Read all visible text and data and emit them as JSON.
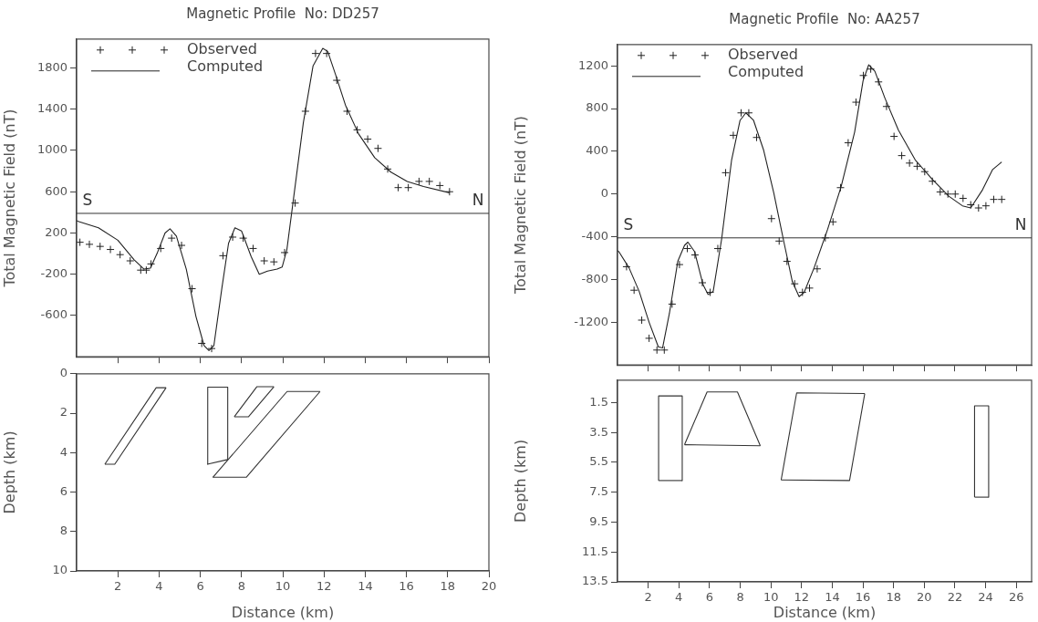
{
  "chart_data": [
    {
      "type": "line",
      "title": "Magnetic Profile  No: DD257",
      "ylabel": "Total Magnetic Field (nT)",
      "xlim": [
        0,
        20
      ],
      "ylim": [
        -1000,
        2080
      ],
      "xticks": [
        2,
        4,
        6,
        8,
        10,
        12,
        14,
        16,
        18,
        20
      ],
      "yticks": [
        -600,
        -200,
        200,
        600,
        1000,
        1400,
        1800
      ],
      "tick_labels": "y",
      "legend": "top left",
      "ref_lines": [
        {
          "axis": "y",
          "value": 390,
          "color": "#333333"
        }
      ],
      "annotations": [
        "S",
        "N"
      ],
      "series": [
        {
          "name": "Observed",
          "type": "scatter",
          "marker": "cross",
          "color": "#222222",
          "x": [
            0.16,
            0.62,
            1.14,
            1.64,
            2.11,
            2.6,
            3.11,
            3.38,
            3.61,
            4.08,
            4.61,
            5.09,
            5.6,
            6.07,
            6.55,
            7.1,
            7.57,
            8.08,
            8.56,
            9.1,
            9.57,
            10.09,
            10.6,
            11.1,
            11.59,
            12.13,
            12.62,
            13.12,
            13.61,
            14.12,
            14.62,
            15.09,
            15.6,
            16.09,
            16.61,
            17.11,
            17.62,
            18.09
          ],
          "values": [
            110,
            90,
            70,
            40,
            -10,
            -70,
            -160,
            -160,
            -100,
            50,
            150,
            80,
            -340,
            -870,
            -920,
            -20,
            160,
            150,
            50,
            -70,
            -80,
            10,
            490,
            1380,
            1940,
            1940,
            1680,
            1380,
            1200,
            1110,
            1020,
            820,
            640,
            640,
            700,
            700,
            660,
            600
          ]
        },
        {
          "name": "Computed",
          "type": "line",
          "color": "#222222",
          "x": [
            0,
            0.11,
            1.06,
            2.0,
            2.79,
            3.27,
            3.58,
            3.9,
            4.29,
            4.53,
            4.84,
            5.32,
            5.79,
            6.18,
            6.42,
            6.66,
            7.05,
            7.37,
            7.68,
            8.0,
            8.47,
            8.86,
            9.26,
            9.73,
            9.97,
            10.2,
            10.52,
            11.0,
            11.47,
            11.94,
            12.18,
            12.57,
            13.04,
            13.68,
            14.46,
            15.25,
            16.04,
            16.83,
            18.09
          ],
          "values": [
            320,
            310,
            250,
            130,
            -60,
            -150,
            -140,
            0,
            200,
            240,
            170,
            -150,
            -610,
            -890,
            -940,
            -890,
            -330,
            100,
            250,
            220,
            -30,
            -200,
            -170,
            -150,
            -130,
            40,
            530,
            1270,
            1820,
            1990,
            1960,
            1730,
            1440,
            1160,
            930,
            790,
            700,
            650,
            590
          ]
        }
      ]
    },
    {
      "type": "line",
      "ylabel": "Depth (km)",
      "xlabel": "Distance (km)",
      "xlim": [
        0,
        20
      ],
      "ylim": [
        10,
        0
      ],
      "xticks": [
        2,
        4,
        6,
        8,
        10,
        12,
        14,
        16,
        18,
        20
      ],
      "yticks": [
        0,
        2,
        4,
        6,
        8,
        10
      ],
      "series": [
        {
          "color": "#333333",
          "x": [
            1.37,
            3.86,
            4.34
          ],
          "values": [
            4.59,
            0.71,
            0.71
          ]
        },
        {
          "color": "#333333",
          "x": [
            1.37,
            1.85,
            4.34
          ],
          "values": [
            4.59,
            4.59,
            0.71
          ]
        },
        {
          "color": "#333333",
          "x": [
            6.34,
            6.36,
            7.33,
            7.33
          ],
          "values": [
            4.59,
            0.68,
            0.68,
            4.35
          ]
        },
        {
          "color": "#333333",
          "x": [
            6.34,
            7.33
          ],
          "values": [
            4.59,
            4.35
          ]
        },
        {
          "color": "#333333",
          "x": [
            7.65,
            8.74,
            9.57
          ],
          "values": [
            2.18,
            0.66,
            0.66
          ]
        },
        {
          "color": "#333333",
          "x": [
            7.65,
            8.34,
            9.57
          ],
          "values": [
            2.18,
            2.18,
            0.66
          ]
        },
        {
          "color": "#333333",
          "x": [
            6.61,
            10.21,
            11.81
          ],
          "values": [
            5.25,
            0.9,
            0.9
          ]
        },
        {
          "color": "#333333",
          "x": [
            6.61,
            8.23,
            11.81
          ],
          "values": [
            5.25,
            5.25,
            0.9
          ]
        }
      ]
    },
    {
      "type": "line",
      "title": "Magnetic Profile  No: AA257",
      "ylabel": "Total Magnetic Field (nT)",
      "xlim": [
        0,
        27
      ],
      "ylim": [
        -1600,
        1400
      ],
      "xticks": [
        2,
        4,
        6,
        8,
        10,
        12,
        14,
        16,
        18,
        20,
        22,
        24,
        26
      ],
      "yticks": [
        -1200,
        -800,
        -400,
        0,
        400,
        800,
        1200
      ],
      "tick_labels": "y",
      "legend": "top left",
      "ref_lines": [
        {
          "axis": "y",
          "value": -410,
          "color": "#333333"
        }
      ],
      "annotations": [
        "S",
        "N"
      ],
      "series": [
        {
          "name": "Observed",
          "type": "scatter",
          "marker": "cross",
          "color": "#222222",
          "x": [
            0.59,
            1.08,
            1.58,
            2.06,
            2.57,
            3.05,
            3.56,
            4.04,
            4.55,
            5.05,
            5.53,
            6.04,
            6.54,
            7.05,
            7.55,
            8.06,
            8.56,
            9.07,
            10.04,
            10.54,
            11.05,
            11.55,
            12.06,
            12.52,
            13.02,
            13.55,
            14.05,
            14.54,
            15.04,
            15.55,
            16.03,
            16.51,
            17.02,
            17.54,
            18.03,
            18.53,
            19.04,
            19.54,
            20.03,
            20.53,
            21.04,
            21.54,
            22.02,
            22.53,
            23.03,
            23.54,
            24.02,
            24.53,
            25.05
          ],
          "values": [
            -680,
            -900,
            -1180,
            -1350,
            -1460,
            -1460,
            -1030,
            -660,
            -510,
            -570,
            -830,
            -920,
            -510,
            200,
            550,
            760,
            760,
            530,
            -230,
            -440,
            -630,
            -840,
            -920,
            -880,
            -700,
            -410,
            -260,
            60,
            480,
            860,
            1110,
            1170,
            1050,
            820,
            540,
            360,
            290,
            260,
            210,
            120,
            20,
            0,
            0,
            -40,
            -100,
            -130,
            -110,
            -50,
            -50
          ]
        },
        {
          "name": "Computed",
          "type": "line",
          "color": "#222222",
          "x": [
            0,
            0.09,
            0.75,
            1.41,
            2.06,
            2.66,
            2.94,
            3.38,
            3.93,
            4.37,
            4.59,
            5.03,
            5.58,
            5.91,
            6.24,
            6.79,
            7.44,
            7.99,
            8.37,
            8.87,
            9.53,
            10.19,
            10.85,
            11.4,
            11.84,
            12.17,
            12.82,
            13.7,
            14.58,
            15.46,
            16.01,
            16.38,
            16.78,
            17.43,
            18.31,
            19.41,
            20.51,
            21.6,
            22.49,
            23.03,
            23.8,
            24.46,
            25.05
          ],
          "values": [
            -530,
            -540,
            -690,
            -910,
            -1200,
            -1430,
            -1440,
            -1120,
            -630,
            -480,
            -450,
            -540,
            -850,
            -940,
            -910,
            -420,
            320,
            690,
            760,
            690,
            410,
            10,
            -450,
            -820,
            -960,
            -920,
            -690,
            -330,
            70,
            580,
            1060,
            1210,
            1150,
            900,
            600,
            320,
            140,
            -20,
            -110,
            -130,
            40,
            230,
            300
          ]
        }
      ]
    },
    {
      "type": "line",
      "ylabel": "Depth (km)",
      "xlabel": "Distance (km)",
      "xlim": [
        0,
        27
      ],
      "ylim": [
        13.5,
        0
      ],
      "xticks": [
        2,
        4,
        6,
        8,
        10,
        12,
        14,
        16,
        18,
        20,
        22,
        24,
        26
      ],
      "yticks": [
        1.5,
        3.5,
        5.5,
        7.5,
        9.5,
        11.5,
        13.5
      ],
      "series": [
        {
          "color": "#333333",
          "x": [
            2.68,
            2.68,
            4.22,
            4.22
          ],
          "values": [
            6.72,
            1.06,
            1.06,
            6.72
          ]
        },
        {
          "color": "#333333",
          "x": [
            2.68,
            4.22
          ],
          "values": [
            6.72,
            6.72
          ]
        },
        {
          "color": "#333333",
          "x": [
            4.37,
            5.84,
            7.82,
            9.31
          ],
          "values": [
            4.32,
            0.79,
            0.79,
            4.39
          ]
        },
        {
          "color": "#333333",
          "x": [
            4.37,
            9.31
          ],
          "values": [
            4.32,
            4.39
          ]
        },
        {
          "color": "#333333",
          "x": [
            10.67,
            11.68,
            16.12
          ],
          "values": [
            6.68,
            0.85,
            0.9
          ]
        },
        {
          "color": "#333333",
          "x": [
            10.67,
            15.13,
            16.12
          ],
          "values": [
            6.68,
            6.72,
            0.9
          ]
        },
        {
          "color": "#333333",
          "x": [
            23.28,
            23.28,
            24.2,
            24.2
          ],
          "values": [
            7.83,
            1.72,
            1.72,
            7.83
          ]
        },
        {
          "color": "#333333",
          "x": [
            23.28,
            24.2
          ],
          "values": [
            7.83,
            7.83
          ]
        }
      ]
    }
  ]
}
